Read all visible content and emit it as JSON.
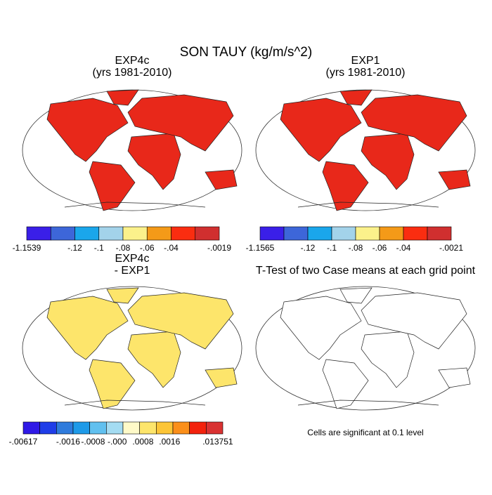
{
  "title": "SON TAUY (kg/m/s^2)",
  "panels": [
    {
      "title": [
        "EXP4c",
        "(yrs 1981-2010)"
      ],
      "colorbar": {
        "colors": [
          "#3a1fe8",
          "#3d66d9",
          "#1aa6eb",
          "#a3d3ea",
          "#fbf18b",
          "#f49a18",
          "#fa2d10",
          "#d02f2f"
        ],
        "labels": [
          "-1.1539",
          "-.12",
          "-.1",
          "-.08",
          "-.06",
          "-.04",
          "-.0019"
        ]
      }
    },
    {
      "title": [
        "EXP1",
        "(yrs 1981-2010)"
      ],
      "colorbar": {
        "colors": [
          "#3a1fe8",
          "#3d66d9",
          "#1aa6eb",
          "#a3d3ea",
          "#fbf18b",
          "#f49a18",
          "#fa2d10",
          "#d02f2f"
        ],
        "labels": [
          "-1.1565",
          "-.12",
          "-.1",
          "-.08",
          "-.06",
          "-.04",
          "-.0021"
        ]
      }
    },
    {
      "title": [
        "EXP4c",
        "- EXP1"
      ],
      "colorbar": {
        "colors": [
          "#2f19e6",
          "#1f3de8",
          "#2f7bdc",
          "#1e9ae8",
          "#61c0ef",
          "#a4dcf2",
          "#fffac8",
          "#fde56b",
          "#fcc537",
          "#fb8f1a",
          "#f3220c",
          "#d93232"
        ],
        "labels": [
          "-.00617",
          "-.0016",
          "-.0008",
          "-.000",
          ".0008",
          ".0016",
          ".013751"
        ]
      }
    },
    {
      "title": [
        "T-Test of two Case means at each grid point"
      ],
      "footnote": "Cells are significant at 0.1 level"
    }
  ]
}
